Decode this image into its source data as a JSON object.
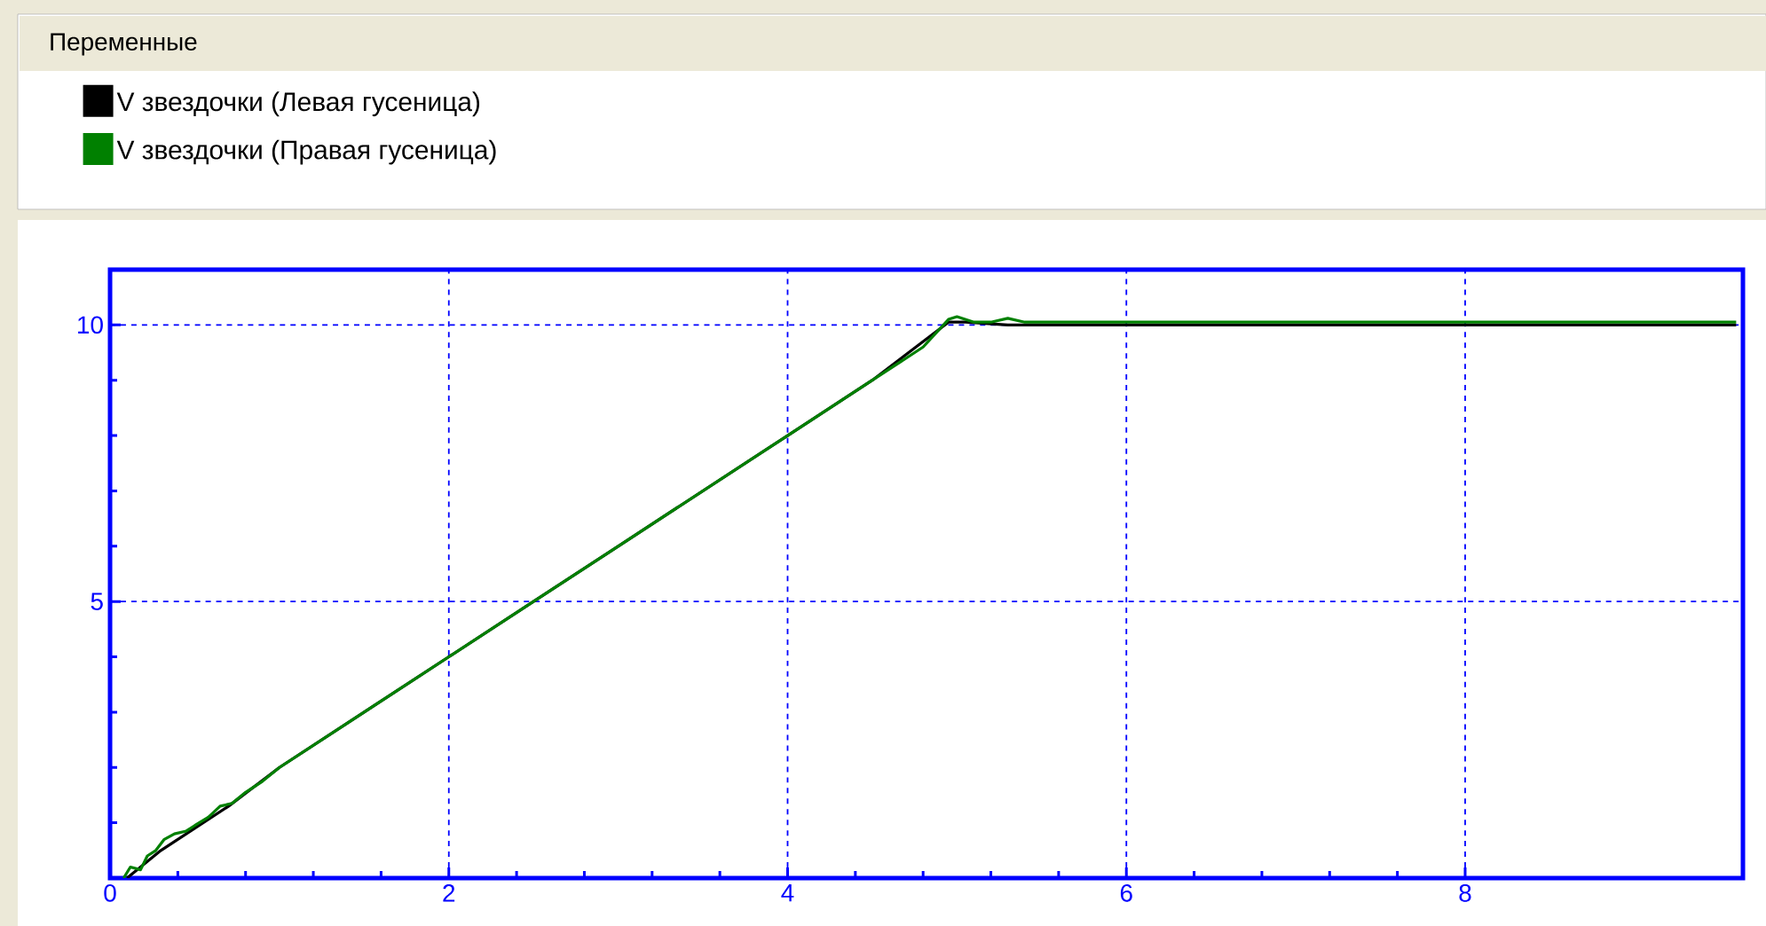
{
  "chart_data": {
    "type": "line",
    "legend_title": "Переменные",
    "series": [
      {
        "name": "V звездочки (Левая гусеница)",
        "color": "#000000",
        "x": [
          0.1,
          0.3,
          0.5,
          0.7,
          1,
          1.5,
          2,
          2.5,
          3,
          3.5,
          4,
          4.5,
          4.95,
          5.05,
          5.3,
          6,
          7,
          8,
          9,
          9.6
        ],
        "values": [
          0,
          0.5,
          0.9,
          1.3,
          2.0,
          3.0,
          4.0,
          5.0,
          6.0,
          7.0,
          8.0,
          9.0,
          10.05,
          10.05,
          10.0,
          10.0,
          10.0,
          10.0,
          10.0,
          10.0
        ]
      },
      {
        "name": "V звездочки (Правая гусеница)",
        "color": "#008000",
        "x": [
          0.08,
          0.12,
          0.18,
          0.22,
          0.27,
          0.32,
          0.38,
          0.45,
          0.5,
          0.58,
          0.65,
          0.72,
          0.8,
          0.9,
          1.0,
          1.2,
          1.4,
          1.6,
          1.8,
          2.0,
          2.5,
          3.0,
          3.5,
          4.0,
          4.5,
          4.8,
          4.95,
          5.0,
          5.1,
          5.2,
          5.3,
          5.4,
          5.6,
          6,
          7,
          8,
          9,
          9.6
        ],
        "values": [
          0,
          0.2,
          0.15,
          0.4,
          0.5,
          0.7,
          0.8,
          0.85,
          0.95,
          1.1,
          1.3,
          1.35,
          1.55,
          1.75,
          2.0,
          2.4,
          2.8,
          3.2,
          3.6,
          4.0,
          5.0,
          6.0,
          7.0,
          8.0,
          9.0,
          9.6,
          10.1,
          10.15,
          10.05,
          10.05,
          10.12,
          10.05,
          10.05,
          10.05,
          10.05,
          10.05,
          10.05,
          10.05
        ]
      }
    ],
    "xlim": [
      0,
      9.64
    ],
    "ylim": [
      0,
      11
    ],
    "xticks": [
      0,
      2,
      4,
      6,
      8
    ],
    "yticks": [
      {
        "value": 0,
        "label": null
      },
      5,
      10
    ],
    "grid": true,
    "legend": "top",
    "line_style": "solid",
    "marker": "none"
  }
}
